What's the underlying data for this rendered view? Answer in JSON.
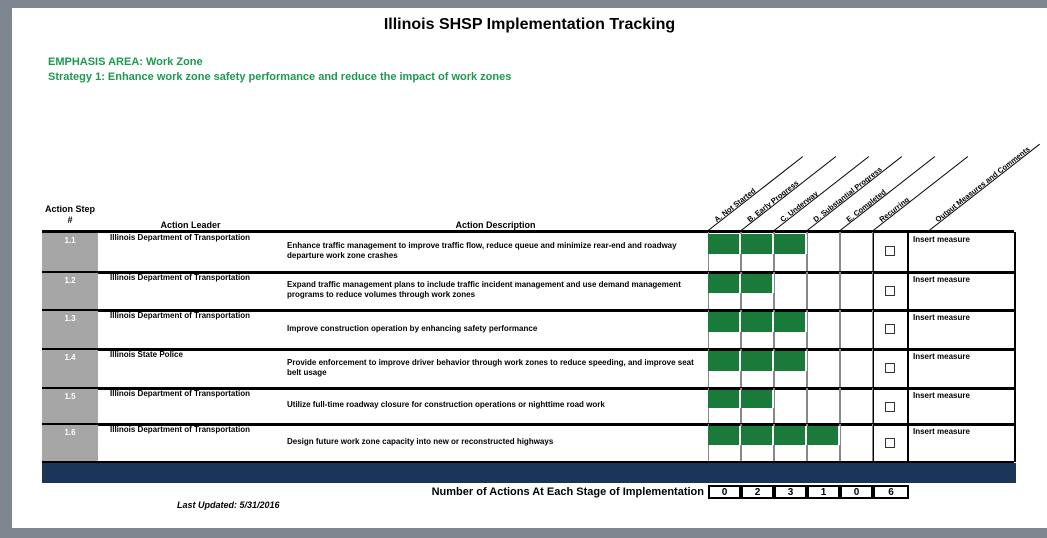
{
  "header": {
    "title": "Illinois SHSP Implementation Tracking",
    "emphasis": "EMPHASIS AREA:  Work Zone",
    "strategy": "Strategy 1: Enhance work zone safety performance and reduce the impact of work zones"
  },
  "table": {
    "columns": {
      "step": "Action Step #",
      "leader": "Action Leader",
      "description": "Action Description",
      "stages": [
        "A. Not Started",
        "B. Early Progress",
        "C. Underway",
        "D. Substantial Progress",
        "E. Completed"
      ],
      "recurring": "Recurring",
      "output": "Output Measures and Comments"
    },
    "rows": [
      {
        "step": "1.1",
        "leader": "Illinois Department of Transportation",
        "description": "Enhance traffic management to improve traffic flow, reduce queue and minimize rear-end and roadway departure work zone crashes",
        "filled": 3,
        "output": "Insert measure"
      },
      {
        "step": "1.2",
        "leader": "Illinois Department of Transportation",
        "description": "Expand traffic management plans to include traffic incident management and use demand management programs to reduce volumes through work zones",
        "filled": 2,
        "output": "Insert measure"
      },
      {
        "step": "1.3",
        "leader": "Illinois Department of Transportation",
        "description": "Improve construction operation by enhancing safety performance",
        "filled": 3,
        "output": "Insert measure"
      },
      {
        "step": "1.4",
        "leader": "Illinois State Police",
        "description": "Provide enforcement to improve driver behavior through work zones to reduce speeding, and improve seat belt usage",
        "filled": 3,
        "output": "Insert measure"
      },
      {
        "step": "1.5",
        "leader": "Illinois Department of Transportation",
        "description": "Utilize full-time roadway closure for construction operations or nighttime road work",
        "filled": 2,
        "output": "Insert measure"
      },
      {
        "step": "1.6",
        "leader": "Illinois Department of Transportation",
        "description": "Design future work zone capacity into new or reconstructed highways",
        "filled": 4,
        "output": "Insert measure"
      }
    ],
    "totals_label": "Number of Actions At Each Stage of Implementation",
    "totals": [
      0,
      2,
      3,
      1,
      0,
      6
    ]
  },
  "footer": {
    "updated": "Last Updated:  5/31/2016"
  }
}
